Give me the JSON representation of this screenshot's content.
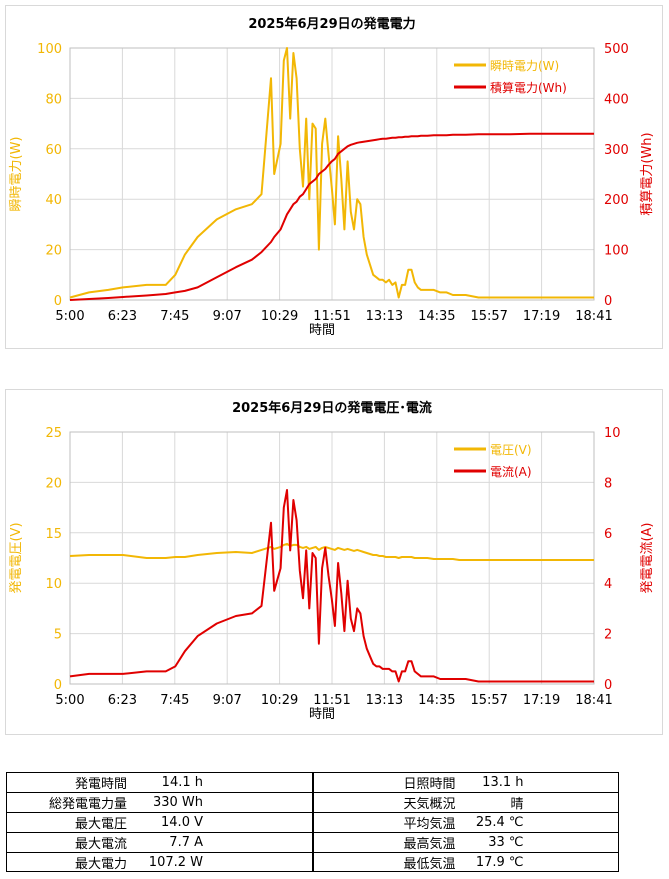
{
  "chart_data": [
    {
      "type": "line",
      "title": "2025年6月29日の発電電力",
      "xlabel": "時間",
      "ylabel": "瞬時電力(W)",
      "y2label": "積算電力(Wh)",
      "xticks": [
        "5:00",
        "6:23",
        "7:45",
        "9:07",
        "10:29",
        "11:51",
        "13:13",
        "14:35",
        "15:57",
        "17:19",
        "18:41"
      ],
      "ylim": [
        0,
        100
      ],
      "y2lim": [
        0,
        500
      ],
      "yticks": [
        0,
        20,
        40,
        60,
        80,
        100
      ],
      "y2ticks": [
        0,
        100,
        200,
        300,
        400,
        500
      ],
      "legend_position": "top-right",
      "grid": true,
      "x_minutes": [
        0,
        30,
        60,
        83,
        120,
        150,
        165,
        180,
        200,
        230,
        260,
        285,
        300,
        315,
        320,
        330,
        335,
        340,
        345,
        350,
        355,
        360,
        365,
        370,
        375,
        380,
        385,
        390,
        395,
        400,
        405,
        410,
        415,
        420,
        425,
        430,
        435,
        440,
        445,
        450,
        455,
        460,
        465,
        470,
        475,
        480,
        485,
        490,
        495,
        500,
        505,
        510,
        515,
        520,
        525,
        530,
        535,
        540,
        545,
        550,
        560,
        570,
        580,
        590,
        600,
        610,
        620,
        640,
        660,
        690,
        720,
        750,
        780,
        821
      ],
      "series": [
        {
          "name": "瞬時電力(W)",
          "color": "#f2b705",
          "axis": "left",
          "values": [
            1,
            3,
            4,
            5,
            6,
            6,
            10,
            18,
            25,
            32,
            36,
            38,
            42,
            88,
            50,
            62,
            95,
            100,
            72,
            98,
            88,
            60,
            45,
            72,
            40,
            70,
            68,
            20,
            62,
            72,
            58,
            45,
            30,
            65,
            48,
            28,
            55,
            35,
            28,
            40,
            38,
            25,
            18,
            14,
            10,
            9,
            8,
            8,
            7,
            8,
            6,
            7,
            1,
            6,
            6,
            12,
            12,
            7,
            5,
            4,
            4,
            4,
            3,
            3,
            2,
            2,
            2,
            1,
            1,
            1,
            1,
            1,
            1,
            1
          ]
        },
        {
          "name": "積算電力(Wh)",
          "color": "#e00000",
          "axis": "right",
          "values": [
            0,
            2,
            4,
            6,
            9,
            12,
            15,
            18,
            25,
            45,
            65,
            80,
            95,
            115,
            125,
            140,
            155,
            170,
            180,
            190,
            195,
            205,
            210,
            220,
            230,
            235,
            240,
            250,
            255,
            260,
            268,
            275,
            280,
            290,
            295,
            300,
            305,
            308,
            310,
            312,
            313,
            314,
            315,
            316,
            317,
            318,
            319,
            320,
            320,
            321,
            322,
            322,
            323,
            323,
            324,
            324,
            325,
            325,
            325,
            326,
            326,
            327,
            327,
            327,
            328,
            328,
            328,
            329,
            329,
            329,
            330,
            330,
            330,
            330
          ]
        }
      ]
    },
    {
      "type": "line",
      "title": "2025年6月29日の発電電圧･電流",
      "xlabel": "時間",
      "ylabel": "発電電圧(V)",
      "y2label": "発電電流(A)",
      "xticks": [
        "5:00",
        "6:23",
        "7:45",
        "9:07",
        "10:29",
        "11:51",
        "13:13",
        "14:35",
        "15:57",
        "17:19",
        "18:41"
      ],
      "ylim": [
        0,
        25
      ],
      "y2lim": [
        0,
        10
      ],
      "yticks": [
        0,
        5,
        10,
        15,
        20,
        25
      ],
      "y2ticks": [
        0,
        2,
        4,
        6,
        8,
        10
      ],
      "legend_position": "top-right",
      "grid": true,
      "x_minutes": [
        0,
        30,
        60,
        83,
        120,
        150,
        165,
        180,
        200,
        230,
        260,
        285,
        300,
        315,
        320,
        330,
        335,
        340,
        345,
        350,
        355,
        360,
        365,
        370,
        375,
        380,
        385,
        390,
        395,
        400,
        405,
        410,
        415,
        420,
        425,
        430,
        435,
        440,
        445,
        450,
        455,
        460,
        465,
        470,
        475,
        480,
        485,
        490,
        495,
        500,
        505,
        510,
        515,
        520,
        525,
        530,
        535,
        540,
        545,
        550,
        560,
        570,
        580,
        590,
        600,
        610,
        620,
        640,
        660,
        690,
        720,
        750,
        780,
        821
      ],
      "series": [
        {
          "name": "電圧(V)",
          "color": "#f2b705",
          "axis": "left",
          "values": [
            12.7,
            12.8,
            12.8,
            12.8,
            12.5,
            12.5,
            12.6,
            12.6,
            12.8,
            13.0,
            13.1,
            13.0,
            13.3,
            13.6,
            13.4,
            13.6,
            13.8,
            13.9,
            13.7,
            13.8,
            13.8,
            13.6,
            13.5,
            13.6,
            13.4,
            13.5,
            13.6,
            13.3,
            13.5,
            13.6,
            13.5,
            13.4,
            13.3,
            13.5,
            13.4,
            13.3,
            13.4,
            13.3,
            13.2,
            13.3,
            13.2,
            13.1,
            13.0,
            12.9,
            12.8,
            12.8,
            12.7,
            12.7,
            12.6,
            12.6,
            12.6,
            12.6,
            12.5,
            12.6,
            12.6,
            12.6,
            12.6,
            12.5,
            12.5,
            12.5,
            12.5,
            12.4,
            12.4,
            12.4,
            12.4,
            12.3,
            12.3,
            12.3,
            12.3,
            12.3,
            12.3,
            12.3,
            12.3,
            12.3
          ]
        },
        {
          "name": "電流(A)",
          "color": "#e00000",
          "axis": "right",
          "values": [
            0.3,
            0.4,
            0.4,
            0.4,
            0.5,
            0.5,
            0.7,
            1.3,
            1.9,
            2.4,
            2.7,
            2.8,
            3.1,
            6.4,
            3.7,
            4.6,
            7.0,
            7.7,
            5.3,
            7.3,
            6.5,
            4.5,
            3.4,
            5.3,
            3.0,
            5.2,
            5.0,
            1.6,
            4.6,
            5.4,
            4.3,
            3.4,
            2.3,
            4.8,
            3.6,
            2.1,
            4.1,
            2.6,
            2.1,
            3.0,
            2.8,
            1.9,
            1.4,
            1.1,
            0.8,
            0.7,
            0.7,
            0.6,
            0.6,
            0.6,
            0.5,
            0.5,
            0.1,
            0.5,
            0.5,
            0.9,
            0.9,
            0.5,
            0.4,
            0.3,
            0.3,
            0.3,
            0.2,
            0.2,
            0.2,
            0.2,
            0.2,
            0.1,
            0.1,
            0.1,
            0.1,
            0.1,
            0.1,
            0.1
          ]
        }
      ]
    }
  ],
  "stats": {
    "left": [
      {
        "label": "発電時間",
        "value": "14.1 h"
      },
      {
        "label": "総発電電力量",
        "value": "330 Wh"
      },
      {
        "label": "最大電圧",
        "value": "14.0 V"
      },
      {
        "label": "最大電流",
        "value": "7.7 A"
      },
      {
        "label": "最大電力",
        "value": "107.2 W"
      }
    ],
    "right": [
      {
        "label": "日照時間",
        "value": "13.1 h"
      },
      {
        "label": "天気概況",
        "value": "晴"
      },
      {
        "label": "平均気温",
        "value": "25.4 ℃"
      },
      {
        "label": "最高気温",
        "value": "33 ℃"
      },
      {
        "label": "最低気温",
        "value": "17.9 ℃"
      }
    ]
  }
}
